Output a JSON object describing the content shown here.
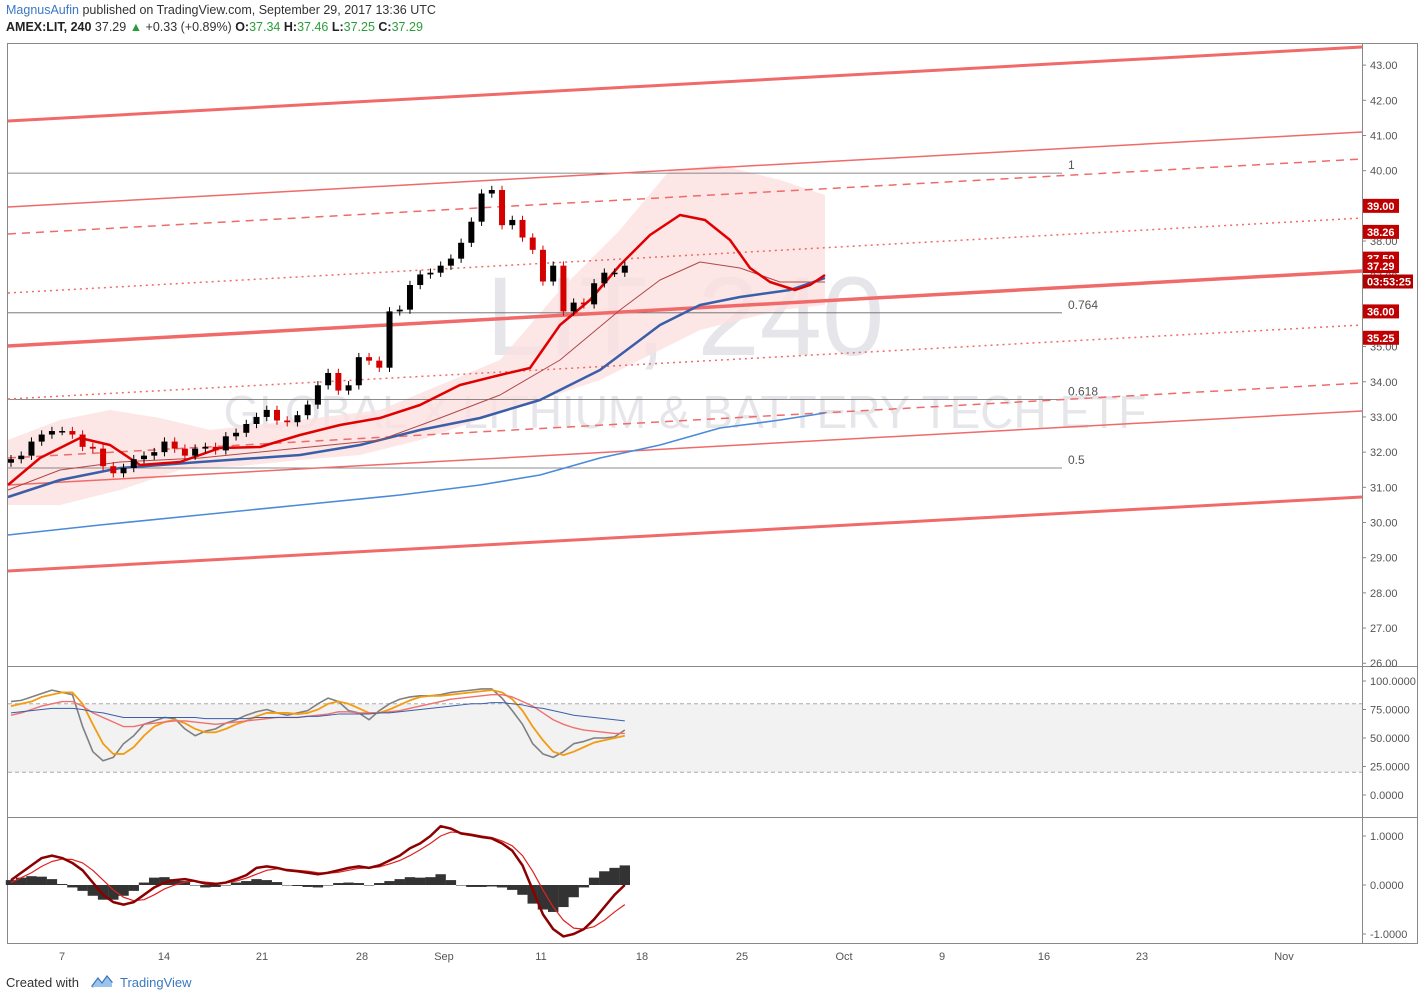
{
  "header": {
    "author": "MagnusAufin",
    "published_text": "published on TradingView.com, September 29, 2017 13:36 UTC",
    "symbol": "AMEX:LIT, 240",
    "last": "37.29",
    "change": "+0.33 (+0.89%)",
    "o_label": "O:",
    "o_val": "37.34",
    "h_label": "H:",
    "h_val": "37.46",
    "l_label": "L:",
    "l_val": "37.25",
    "c_label": "C:",
    "c_val": "37.29"
  },
  "watermark": {
    "symbol": "LIT, 240",
    "name": "GLOBAL X LITHIUM & BATTERY TECH ETF"
  },
  "footer": {
    "created_with": "Created with",
    "brand": "TradingView"
  },
  "colors": {
    "up": "#000000",
    "down": "#d40000",
    "channel": "#f06a6a",
    "ema_red": "#e00000",
    "sma_blue": "#3a5fa8",
    "sma_light_blue": "#4a8ad8",
    "stoch_k": "#808080",
    "stoch_d": "#f39c12",
    "macd": "#8b0000",
    "signal": "#e02020",
    "hist": "#333333"
  },
  "chart_data": [
    {
      "type": "candlestick",
      "panel": "price",
      "y_range": [
        25.95,
        43.6
      ],
      "y_ticks": [
        "43.00",
        "42.00",
        "41.00",
        "40.00",
        "39.00",
        "38.00",
        "37.00",
        "36.00",
        "35.00",
        "34.00",
        "33.00",
        "32.00",
        "31.00",
        "30.00",
        "29.00",
        "28.00",
        "27.00",
        "26.00"
      ],
      "x_labels": [
        "7",
        "14",
        "21",
        "28",
        "Sep",
        "11",
        "18",
        "25",
        "Oct",
        "9",
        "16",
        "23",
        "Nov"
      ],
      "price_labels": [
        {
          "value": 39.0,
          "text": "39.00"
        },
        {
          "value": 38.26,
          "text": "38.26"
        },
        {
          "value": 37.5,
          "text": "37.50"
        },
        {
          "value": 37.29,
          "text": "37.29"
        },
        {
          "value": 36.85,
          "text": "03:53:25"
        },
        {
          "value": 36.0,
          "text": "36.00"
        },
        {
          "value": 35.25,
          "text": "35.25"
        }
      ],
      "fib_levels": [
        {
          "label": "1",
          "value": 39.93
        },
        {
          "label": "0.764",
          "value": 35.96
        },
        {
          "label": "0.618",
          "value": 33.5
        },
        {
          "label": "0.5",
          "value": 31.55
        }
      ],
      "candles_close": [
        31.8,
        31.9,
        32.3,
        32.5,
        32.6,
        32.6,
        32.5,
        32.15,
        32.1,
        31.6,
        31.4,
        31.55,
        31.8,
        31.9,
        32.0,
        32.3,
        32.1,
        31.9,
        32.1,
        32.15,
        32.05,
        32.45,
        32.55,
        32.8,
        33.0,
        33.2,
        32.9,
        32.85,
        33.05,
        33.35,
        33.9,
        34.25,
        33.75,
        33.9,
        34.7,
        34.6,
        34.4,
        36.0,
        36.05,
        36.75,
        37.05,
        37.1,
        37.3,
        37.5,
        37.95,
        38.55,
        39.35,
        39.45,
        38.45,
        38.6,
        38.1,
        37.75,
        36.85,
        37.3,
        36.0,
        36.25,
        36.2,
        36.8,
        37.1,
        37.1,
        37.3
      ]
    },
    {
      "type": "line",
      "panel": "stochastic",
      "y_ticks": [
        "100.0000",
        "75.0000",
        "50.0000",
        "25.0000",
        "0.0000"
      ],
      "series": [
        {
          "values": [
            82,
            83,
            86,
            89,
            92,
            90,
            88,
            60,
            38,
            30,
            33,
            45,
            52,
            62,
            65,
            68,
            67,
            58,
            52,
            56,
            58,
            63,
            66,
            70,
            73,
            75,
            72,
            70,
            72,
            74,
            80,
            85,
            82,
            74,
            72,
            66,
            74,
            80,
            84,
            86,
            87,
            87,
            88,
            90,
            91,
            92,
            93,
            93,
            85,
            74,
            62,
            45,
            36,
            33,
            38,
            45,
            47,
            50,
            50,
            51,
            57
          ]
        },
        {
          "values": [
            78,
            80,
            82,
            86,
            88,
            90,
            90,
            80,
            62,
            45,
            36,
            36,
            42,
            52,
            60,
            64,
            66,
            63,
            58,
            55,
            55,
            58,
            62,
            65,
            69,
            72,
            72,
            72,
            71,
            72,
            75,
            80,
            82,
            80,
            76,
            72,
            72,
            75,
            79,
            83,
            86,
            87,
            87,
            88,
            89,
            90,
            91,
            92,
            90,
            84,
            74,
            60,
            48,
            38,
            35,
            38,
            42,
            46,
            48,
            50,
            52
          ]
        },
        {
          "values": [
            70,
            72,
            75,
            78,
            80,
            82,
            82,
            78,
            72,
            68,
            64,
            60,
            60,
            62,
            63,
            64,
            65,
            65,
            64,
            63,
            62,
            63,
            64,
            65,
            66,
            67,
            68,
            68,
            68,
            69,
            70,
            71,
            73,
            73,
            72,
            72,
            72,
            73,
            74,
            76,
            78,
            80,
            82,
            84,
            85,
            86,
            87,
            88,
            88,
            86,
            82,
            78,
            72,
            66,
            62,
            59,
            57,
            56,
            55,
            54,
            54
          ]
        },
        {
          "values": [
            72,
            73,
            74,
            75,
            76,
            76,
            76,
            75,
            73,
            72,
            70,
            68,
            68,
            68,
            68,
            68,
            68,
            68,
            68,
            67,
            67,
            67,
            67,
            67,
            68,
            68,
            68,
            68,
            68,
            69,
            69,
            70,
            71,
            71,
            71,
            71,
            72,
            72,
            73,
            74,
            75,
            76,
            77,
            78,
            79,
            80,
            80,
            81,
            81,
            80,
            79,
            77,
            76,
            74,
            72,
            70,
            69,
            68,
            67,
            66,
            65
          ]
        }
      ]
    },
    {
      "type": "line",
      "panel": "macd",
      "y_ticks": [
        "1.0000",
        "0.0000",
        "-1.0000"
      ],
      "series": [
        {
          "values": [
            0.1,
            0.25,
            0.4,
            0.55,
            0.6,
            0.55,
            0.45,
            0.3,
            0.05,
            -0.2,
            -0.35,
            -0.4,
            -0.35,
            -0.2,
            -0.05,
            0.05,
            0.1,
            0.12,
            0.08,
            0.03,
            0.02,
            0.05,
            0.12,
            0.2,
            0.35,
            0.38,
            0.35,
            0.3,
            0.28,
            0.25,
            0.22,
            0.25,
            0.3,
            0.35,
            0.38,
            0.35,
            0.4,
            0.5,
            0.6,
            0.75,
            0.85,
            1.0,
            1.2,
            1.15,
            1.05,
            1.02,
            0.98,
            0.95,
            0.85,
            0.7,
            0.4,
            -0.1,
            -0.6,
            -0.9,
            -1.05,
            -1.0,
            -0.9,
            -0.7,
            -0.45,
            -0.2,
            0.0
          ]
        },
        {
          "values": [
            0.05,
            0.15,
            0.25,
            0.38,
            0.48,
            0.53,
            0.52,
            0.45,
            0.3,
            0.1,
            -0.1,
            -0.25,
            -0.32,
            -0.3,
            -0.2,
            -0.08,
            0.0,
            0.06,
            0.08,
            0.06,
            0.04,
            0.04,
            0.08,
            0.14,
            0.22,
            0.3,
            0.33,
            0.32,
            0.3,
            0.28,
            0.25,
            0.24,
            0.26,
            0.3,
            0.34,
            0.35,
            0.37,
            0.43,
            0.5,
            0.6,
            0.72,
            0.85,
            1.0,
            1.08,
            1.07,
            1.04,
            1.0,
            0.97,
            0.9,
            0.8,
            0.6,
            0.28,
            -0.1,
            -0.45,
            -0.72,
            -0.88,
            -0.9,
            -0.85,
            -0.72,
            -0.55,
            -0.4
          ]
        },
        {
          "values": [
            0.1,
            0.15,
            0.18,
            0.17,
            0.12,
            0.02,
            -0.05,
            -0.12,
            -0.22,
            -0.3,
            -0.3,
            -0.22,
            -0.12,
            0.05,
            0.15,
            0.16,
            0.12,
            0.08,
            0.0,
            -0.05,
            -0.04,
            0.0,
            0.05,
            0.08,
            0.12,
            0.1,
            0.06,
            0.0,
            -0.02,
            -0.04,
            -0.05,
            0.0,
            0.04,
            0.05,
            0.04,
            0.0,
            0.04,
            0.08,
            0.12,
            0.16,
            0.15,
            0.16,
            0.22,
            0.1,
            0.0,
            -0.04,
            -0.04,
            -0.03,
            -0.05,
            -0.1,
            -0.2,
            -0.38,
            -0.5,
            -0.55,
            -0.45,
            -0.25,
            -0.05,
            0.15,
            0.28,
            0.35,
            0.4
          ]
        }
      ]
    }
  ]
}
